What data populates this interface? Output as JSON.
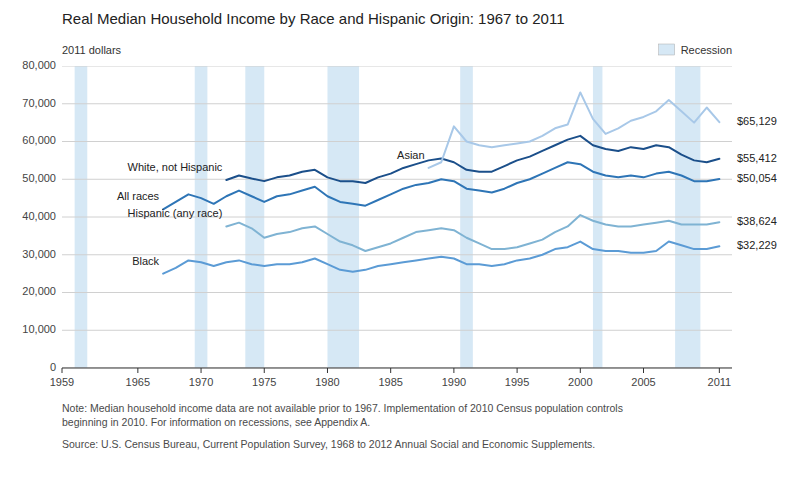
{
  "chart_data": {
    "type": "line",
    "title": "Real Median Household Income by Race and Hispanic Origin: 1967 to 2011",
    "y_label": "2011 dollars",
    "xlim": [
      1959,
      2012
    ],
    "ylim": [
      0,
      80000
    ],
    "xticks": [
      1959,
      1965,
      1970,
      1975,
      1980,
      1985,
      1990,
      1995,
      2000,
      2005,
      2011
    ],
    "yticks": [
      0,
      {
        "value": 10000,
        "label": "10,000"
      },
      {
        "value": 20000,
        "label": "20,000"
      },
      {
        "value": 30000,
        "label": "30,000"
      },
      {
        "value": 40000,
        "label": "40,000"
      },
      {
        "value": 50000,
        "label": "50,000"
      },
      {
        "value": 60000,
        "label": "60,000"
      },
      {
        "value": 70000,
        "label": "70,000"
      },
      {
        "value": 80000,
        "label": "80,000"
      }
    ],
    "grid": true,
    "legend": "upper right",
    "recession": {
      "name": "Recession",
      "color": "#d6e8f5",
      "bands": [
        [
          1960.0,
          1961.0
        ],
        [
          1969.5,
          1970.5
        ],
        [
          1973.5,
          1975.0
        ],
        [
          1980.0,
          1982.5
        ],
        [
          1990.5,
          1991.5
        ],
        [
          2001.0,
          2001.75
        ],
        [
          2007.5,
          2009.5
        ]
      ]
    },
    "series": [
      {
        "name": "Black",
        "color": "#5b9bd5",
        "x": [
          1967,
          1968,
          1969,
          1970,
          1971,
          1972,
          1973,
          1974,
          1975,
          1976,
          1977,
          1978,
          1979,
          1980,
          1981,
          1982,
          1983,
          1984,
          1985,
          1986,
          1987,
          1988,
          1989,
          1990,
          1991,
          1992,
          1993,
          1994,
          1995,
          1996,
          1997,
          1998,
          1999,
          2000,
          2001,
          2002,
          2003,
          2004,
          2005,
          2006,
          2007,
          2008,
          2009,
          2010,
          2011
        ],
        "values": [
          25000,
          26500,
          28500,
          28000,
          27000,
          28000,
          28500,
          27500,
          27000,
          27500,
          27500,
          28000,
          29000,
          27500,
          26000,
          25500,
          26000,
          27000,
          27500,
          28000,
          28500,
          29000,
          29500,
          29000,
          27500,
          27500,
          27000,
          27500,
          28500,
          29000,
          30000,
          31500,
          32000,
          33500,
          31500,
          31000,
          31000,
          30500,
          30500,
          31000,
          33500,
          32500,
          31500,
          31500,
          32229
        ]
      },
      {
        "name": "Hispanic (any race)",
        "color": "#7fb3d3",
        "x": [
          1972,
          1973,
          1974,
          1975,
          1976,
          1977,
          1978,
          1979,
          1980,
          1981,
          1982,
          1983,
          1984,
          1985,
          1986,
          1987,
          1988,
          1989,
          1990,
          1991,
          1992,
          1993,
          1994,
          1995,
          1996,
          1997,
          1998,
          1999,
          2000,
          2001,
          2002,
          2003,
          2004,
          2005,
          2006,
          2007,
          2008,
          2009,
          2010,
          2011
        ],
        "values": [
          37500,
          38500,
          37000,
          34500,
          35500,
          36000,
          37000,
          37500,
          35500,
          33500,
          32500,
          31000,
          32000,
          33000,
          34500,
          36000,
          36500,
          37000,
          36500,
          34500,
          33000,
          31500,
          31500,
          32000,
          33000,
          34000,
          36000,
          37500,
          40500,
          39000,
          38000,
          37500,
          37500,
          38000,
          38500,
          39000,
          38000,
          38000,
          38000,
          38624
        ]
      },
      {
        "name": "All races",
        "color": "#2e75b6",
        "x": [
          1967,
          1968,
          1969,
          1970,
          1971,
          1972,
          1973,
          1974,
          1975,
          1976,
          1977,
          1978,
          1979,
          1980,
          1981,
          1982,
          1983,
          1984,
          1985,
          1986,
          1987,
          1988,
          1989,
          1990,
          1991,
          1992,
          1993,
          1994,
          1995,
          1996,
          1997,
          1998,
          1999,
          2000,
          2001,
          2002,
          2003,
          2004,
          2005,
          2006,
          2007,
          2008,
          2009,
          2010,
          2011
        ],
        "values": [
          42000,
          44000,
          46000,
          45000,
          43500,
          45500,
          47000,
          45500,
          44000,
          45500,
          46000,
          47000,
          48000,
          45500,
          44000,
          43500,
          43000,
          44500,
          46000,
          47500,
          48500,
          49000,
          50000,
          49500,
          47500,
          47000,
          46500,
          47500,
          49000,
          50000,
          51500,
          53000,
          54500,
          54000,
          52000,
          51000,
          50500,
          51000,
          50500,
          51500,
          52000,
          51000,
          49500,
          49500,
          50054
        ]
      },
      {
        "name": "White, not Hispanic",
        "color": "#1b4f8a",
        "x": [
          1972,
          1973,
          1974,
          1975,
          1976,
          1977,
          1978,
          1979,
          1980,
          1981,
          1982,
          1983,
          1984,
          1985,
          1986,
          1987,
          1988,
          1989,
          1990,
          1991,
          1992,
          1993,
          1994,
          1995,
          1996,
          1997,
          1998,
          1999,
          2000,
          2001,
          2002,
          2003,
          2004,
          2005,
          2006,
          2007,
          2008,
          2009,
          2010,
          2011
        ],
        "values": [
          49800,
          51000,
          50200,
          49500,
          50500,
          51000,
          52000,
          52500,
          50500,
          49500,
          49500,
          49000,
          50500,
          51500,
          53000,
          54000,
          55000,
          55500,
          54500,
          52500,
          52000,
          52000,
          53500,
          55000,
          56000,
          57500,
          59000,
          60500,
          61500,
          59000,
          58000,
          57500,
          58500,
          58000,
          59000,
          58500,
          56500,
          55000,
          54500,
          55412
        ]
      },
      {
        "name": "Asian",
        "color": "#a8c8e8",
        "x": [
          1988,
          1989,
          1990,
          1991,
          1992,
          1993,
          1994,
          1995,
          1996,
          1997,
          1998,
          1999,
          2000,
          2001,
          2002,
          2003,
          2004,
          2005,
          2006,
          2007,
          2008,
          2009,
          2010,
          2011
        ],
        "values": [
          53000,
          54500,
          64000,
          60000,
          59000,
          58500,
          59000,
          59500,
          60000,
          61500,
          63500,
          64500,
          73000,
          66000,
          62000,
          63500,
          65500,
          66500,
          68000,
          71000,
          68000,
          65000,
          69000,
          65129
        ]
      }
    ],
    "right_labels": [
      {
        "value": 65129,
        "label": "$65,129"
      },
      {
        "value": 55412,
        "label": "$55,412"
      },
      {
        "value": 50054,
        "label": "$50,054"
      },
      {
        "value": 38624,
        "label": "$38,624"
      },
      {
        "value": 32229,
        "label": "$32,229"
      }
    ],
    "note": "Note: Median household income data are not available prior to 1967. Implementation of 2010 Census population controls\nbeginning in 2010. For information on recessions, see Appendix A.",
    "source": "Source: U.S. Census Bureau, Current Population Survey, 1968 to 2012 Annual Social and Economic Supplements."
  }
}
